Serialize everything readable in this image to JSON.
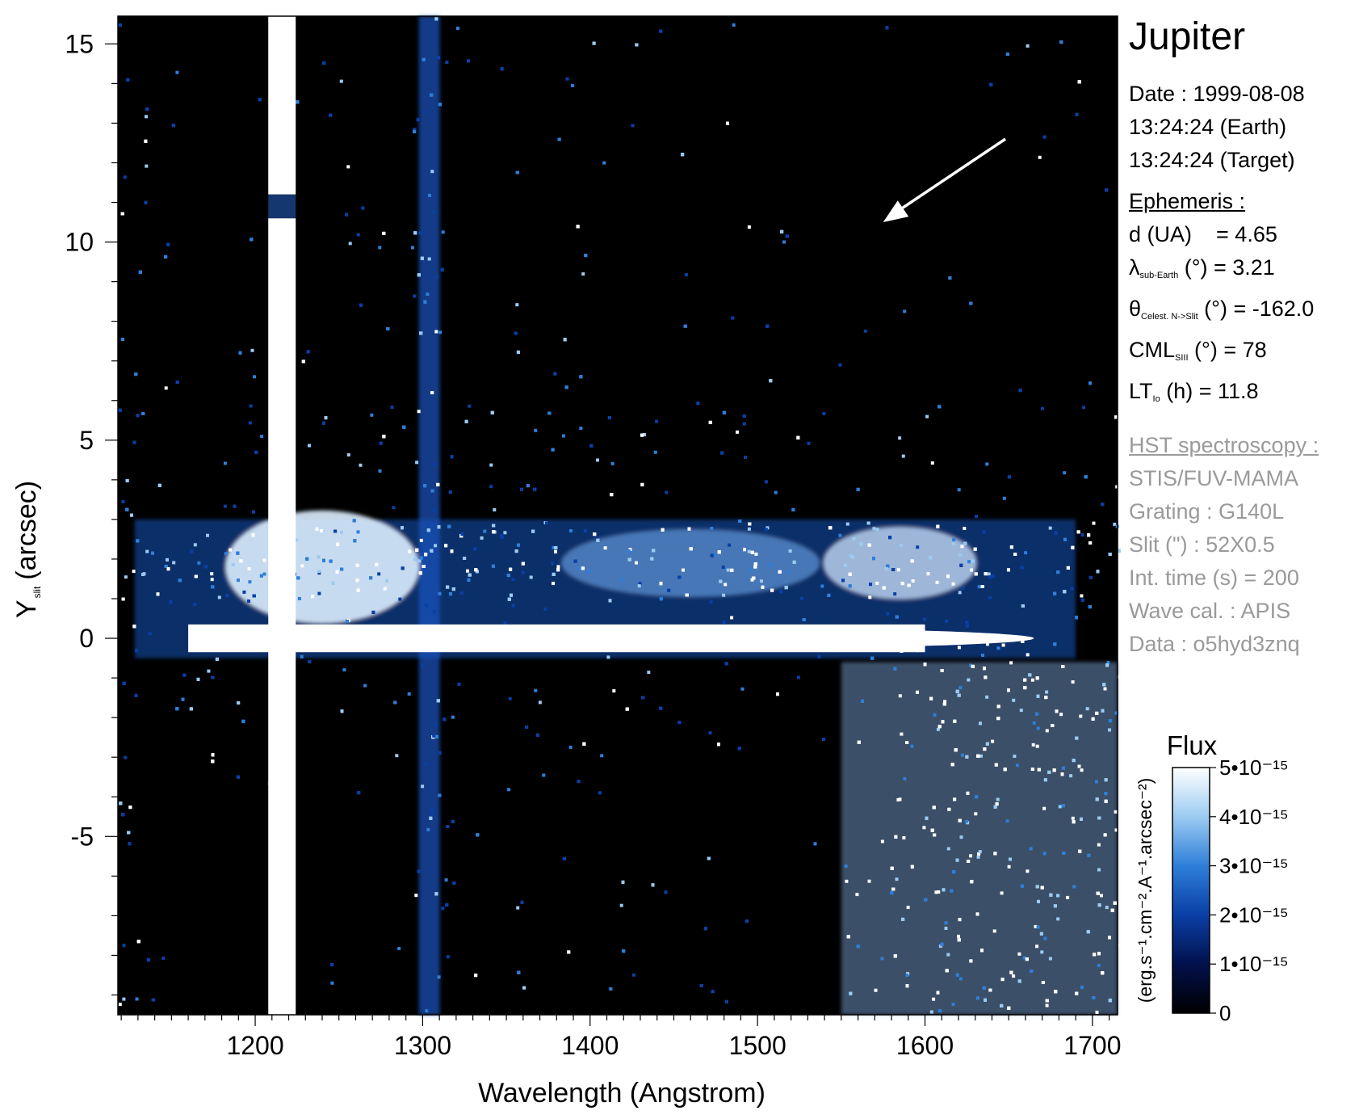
{
  "chart_data": {
    "type": "heatmap",
    "title": "Jupiter",
    "xlabel": "Wavelength (Angstrom)",
    "ylabel_main": "Y",
    "ylabel_sub": "slit",
    "ylabel_unit": "(arcsec)",
    "xlim": [
      1118,
      1715
    ],
    "ylim": [
      -9.5,
      15.7
    ],
    "x_ticks": [
      1200,
      1300,
      1400,
      1500,
      1600,
      1700
    ],
    "x_tick_labels": [
      "1200",
      "1300",
      "1400",
      "1500",
      "1600",
      "1700"
    ],
    "y_ticks": [
      15,
      10,
      5,
      0,
      -5
    ],
    "y_tick_labels": [
      "15",
      "10",
      "5",
      "0",
      "-5"
    ],
    "features": {
      "lyman_alpha_center": 1216,
      "oi_line_center": 1304,
      "slit_gap_y": [
        10.6,
        11.2
      ],
      "continuum_onset_wavelength": 1550,
      "equatorial_band_y": [
        -0.5,
        3.0
      ]
    },
    "arrow": {
      "from": [
        1648,
        12.6
      ],
      "to": [
        1575,
        10.5
      ]
    },
    "colorbar": {
      "label": "Flux",
      "unit": "(erg.s⁻¹.cm⁻².A⁻¹.arcsec⁻²)",
      "range": [
        0,
        5e-15
      ],
      "ticks": [
        0,
        1e-15,
        2e-15,
        3e-15,
        4e-15,
        5e-15
      ],
      "tick_labels": [
        "0",
        "1•10⁻¹⁵",
        "2•10⁻¹⁵",
        "3•10⁻¹⁵",
        "4•10⁻¹⁵",
        "5•10⁻¹⁵"
      ],
      "colors": [
        "#000000",
        "#02114d",
        "#0a3fa6",
        "#2e7fd9",
        "#9ccbf2",
        "#ffffff"
      ]
    }
  },
  "info": {
    "title": "Jupiter",
    "date": "Date : 1999-08-08",
    "time_earth": "13:24:24 (Earth)",
    "time_target": "13:24:24 (Target)",
    "ephemeris_header": "Ephemeris :",
    "d_label": "d (UA)",
    "d_value": "= 4.65",
    "lambda_symbol": "λ",
    "lambda_sub": "sub-Earth",
    "lambda_value": "(°)  = 3.21",
    "theta_symbol": "θ",
    "theta_sub": "Celest. N->Slit",
    "theta_value": "(°) = -162.0",
    "cml_label": "CML",
    "cml_sub": "SIII",
    "cml_value": "(°) = 78",
    "lt_label": "LT",
    "lt_sub": "Io",
    "lt_value": "(h) = 11.8",
    "hst_header": "HST spectroscopy :",
    "instrument": "STIS/FUV-MAMA",
    "grating": "Grating : G140L",
    "slit": "Slit (\") : 52X0.5",
    "int_time": "Int. time (s) = 200",
    "wave_cal": "Wave cal. : APIS",
    "data_id": "Data : o5hyd3znq"
  }
}
